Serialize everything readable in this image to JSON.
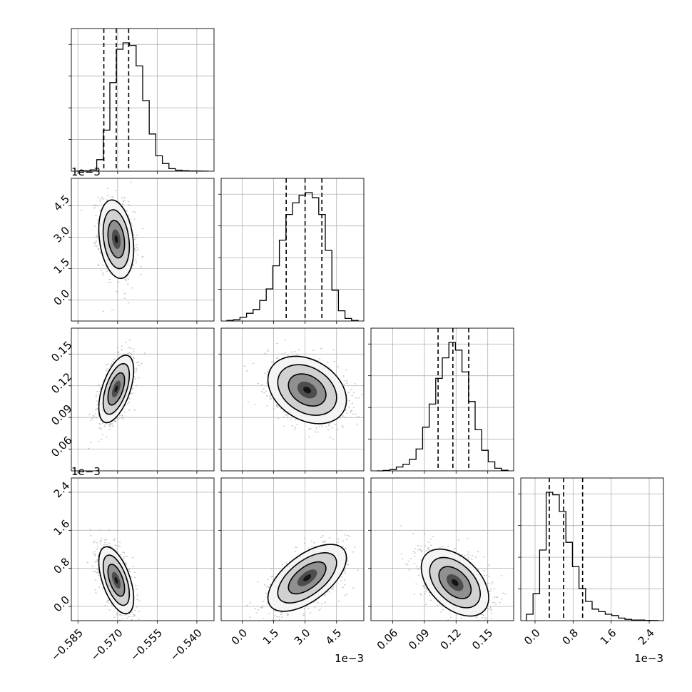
{
  "chart_data": {
    "type": "corner",
    "grid": true,
    "parameters": [
      {
        "range": [
          -0.5875,
          -0.5335
        ],
        "ticks": [
          -0.585,
          -0.57,
          -0.555,
          -0.54
        ],
        "tick_labels": [
          "−0.585",
          "−0.570",
          "−0.555",
          "−0.540"
        ],
        "offset_label": "",
        "median": -0.5705,
        "quantiles": [
          -0.5752,
          -0.5705,
          -0.5658
        ],
        "mode": [
          -0.5705,
          0.0029
        ],
        "histogram": [
          0.002,
          0.003,
          0.01,
          0.09,
          0.32,
          0.69,
          0.95,
          1.0,
          0.98,
          0.82,
          0.55,
          0.29,
          0.12,
          0.06,
          0.02,
          0.008,
          0.004,
          0.002,
          0.001,
          0.0005
        ]
      },
      {
        "range": [
          -0.001,
          0.0058
        ],
        "ticks": [
          0.0,
          0.0015,
          0.003,
          0.0045
        ],
        "tick_labels": [
          "0.0",
          "1.5",
          "3.0",
          "4.5"
        ],
        "offset_label": "1e−3",
        "median": 0.003,
        "quantiles": [
          0.0021,
          0.003,
          0.0038
        ],
        "histogram": [
          0.005,
          0.01,
          0.03,
          0.06,
          0.09,
          0.16,
          0.25,
          0.43,
          0.63,
          0.83,
          0.92,
          0.98,
          1.0,
          0.96,
          0.83,
          0.55,
          0.24,
          0.08,
          0.02,
          0.005
        ]
      },
      {
        "range": [
          0.0395,
          0.1745
        ],
        "ticks": [
          0.06,
          0.09,
          0.12,
          0.15
        ],
        "tick_labels": [
          "0.06",
          "0.09",
          "0.12",
          "0.15"
        ],
        "offset_label": "",
        "median": 0.117,
        "quantiles": [
          0.103,
          0.117,
          0.132
        ],
        "histogram": [
          0.0,
          0.003,
          0.01,
          0.03,
          0.05,
          0.09,
          0.17,
          0.34,
          0.52,
          0.72,
          0.88,
          1.0,
          0.94,
          0.77,
          0.54,
          0.32,
          0.16,
          0.07,
          0.02,
          0.005
        ]
      },
      {
        "range": [
          -0.0003,
          0.0027
        ],
        "ticks": [
          0.0,
          0.0008,
          0.0016,
          0.0024
        ],
        "tick_labels": [
          "0.0",
          "0.8",
          "1.6",
          "2.4"
        ],
        "offset_label": "1e−3",
        "median": 0.0006,
        "quantiles": [
          0.0003,
          0.0006,
          0.001
        ],
        "histogram": [
          0.05,
          0.21,
          0.55,
          1.0,
          0.98,
          0.85,
          0.61,
          0.42,
          0.25,
          0.15,
          0.09,
          0.07,
          0.05,
          0.04,
          0.02,
          0.01,
          0.005,
          0.005,
          0.002,
          0.001
        ]
      }
    ],
    "pairs": [
      {
        "x": 0,
        "y": 1,
        "center": [
          -0.5705,
          0.0029
        ],
        "sigma": [
          0.003,
          0.00085
        ],
        "rho": -0.25
      },
      {
        "x": 0,
        "y": 2,
        "center": [
          -0.5705,
          0.117
        ],
        "sigma": [
          0.003,
          0.0145
        ],
        "rho": 0.55
      },
      {
        "x": 1,
        "y": 2,
        "center": [
          0.0031,
          0.116
        ],
        "sigma": [
          0.00085,
          0.0145
        ],
        "rho": -0.3
      },
      {
        "x": 0,
        "y": 3,
        "center": [
          -0.5705,
          0.00055
        ],
        "sigma": [
          0.003,
          0.00032
        ],
        "rho": -0.55
      },
      {
        "x": 1,
        "y": 3,
        "center": [
          0.0031,
          0.0006
        ],
        "sigma": [
          0.00085,
          0.00032
        ],
        "rho": 0.6
      },
      {
        "x": 2,
        "y": 3,
        "center": [
          0.119,
          0.0005
        ],
        "sigma": [
          0.0145,
          0.00032
        ],
        "rho": -0.45
      }
    ]
  }
}
